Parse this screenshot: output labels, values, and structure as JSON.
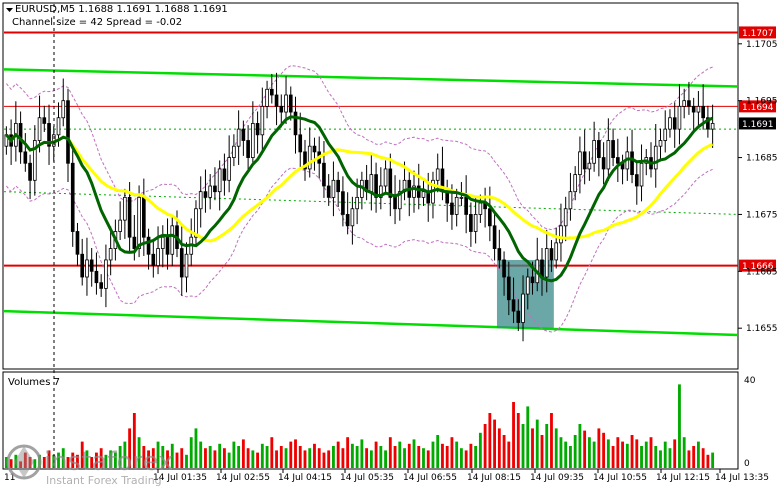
{
  "header": {
    "symbol_line": "EURUSD,M5  1.1688 1.1691 1.1688 1.1691",
    "channel_line": "Channel size = 42 Spread = -0.02"
  },
  "volume_label": "Volumes 7",
  "watermark": {
    "brand": "instaforex",
    "tagline": "Instant Forex Trading"
  },
  "colors": {
    "bull": "#000000",
    "bear": "#000000",
    "ma_slow": "#ffff00",
    "ma_fast": "#006400",
    "channel": "#00dd00",
    "level_line": "#e00000",
    "envelope": "#c070c0",
    "box": "#3a8a8a",
    "vol_up": "#00aa00",
    "vol_down": "#ee0000"
  },
  "chart_data": {
    "type": "candlestick",
    "symbol": "EURUSD",
    "timeframe": "M5",
    "ylim": [
      1.1648,
      1.1712
    ],
    "y_ticks": [
      1.1655,
      1.1665,
      1.1675,
      1.1685,
      1.1695,
      1.1705
    ],
    "y_tick_labels": [
      "1.1655",
      "1.1665",
      "1.1675",
      "1.1685",
      "1.1695",
      "1.1705"
    ],
    "x_labels": [
      "14 Jul 01:35",
      "14 Jul 02:55",
      "14 Jul 04:15",
      "14 Jul 05:35",
      "14 Jul 06:55",
      "14 Jul 08:15",
      "14 Jul 09:35",
      "14 Jul 10:55",
      "14 Jul 12:15",
      "14 Jul 13:35"
    ],
    "x_label_prefix": "11",
    "price_levels": [
      {
        "label": "1.1707",
        "value": 1.1707,
        "style": "red"
      },
      {
        "label": "1.1694",
        "value": 1.1694,
        "style": "red"
      },
      {
        "label": "1.1691",
        "value": 1.1691,
        "style": "current"
      },
      {
        "label": "1.1666",
        "value": 1.1666,
        "style": "red"
      }
    ],
    "close": [
      1.1689,
      1.1687,
      1.1691,
      1.1686,
      1.1684,
      1.1681,
      1.1688,
      1.1692,
      1.1691,
      1.1687,
      1.1689,
      1.1692,
      1.1695,
      1.1684,
      1.1672,
      1.1668,
      1.1664,
      1.1667,
      1.1665,
      1.1663,
      1.1662,
      1.1667,
      1.1669,
      1.1672,
      1.1674,
      1.1678,
      1.1671,
      1.1669,
      1.1678,
      1.1671,
      1.1668,
      1.1666,
      1.1669,
      1.1671,
      1.1668,
      1.1673,
      1.1669,
      1.1664,
      1.1668,
      1.1671,
      1.1676,
      1.1679,
      1.1678,
      1.168,
      1.1679,
      1.1683,
      1.1681,
      1.1685,
      1.1687,
      1.169,
      1.1688,
      1.1685,
      1.1691,
      1.1689,
      1.1694,
      1.1697,
      1.1696,
      1.1694,
      1.1693,
      1.1696,
      1.1693,
      1.1689,
      1.1686,
      1.1683,
      1.1687,
      1.1686,
      1.1684,
      1.168,
      1.1678,
      1.1681,
      1.1679,
      1.1675,
      1.1673,
      1.1676,
      1.1678,
      1.1681,
      1.1679,
      1.1682,
      1.1678,
      1.168,
      1.1683,
      1.1678,
      1.1676,
      1.1679,
      1.1681,
      1.1678,
      1.168,
      1.1678,
      1.1679,
      1.1677,
      1.1681,
      1.1683,
      1.1679,
      1.1677,
      1.1675,
      1.1678,
      1.1678,
      1.1675,
      1.1672,
      1.1675,
      1.1677,
      1.1676,
      1.1673,
      1.1669,
      1.1667,
      1.1664,
      1.166,
      1.1658,
      1.1656,
      1.1661,
      1.1664,
      1.1663,
      1.1667,
      1.1664,
      1.1669,
      1.1667,
      1.167,
      1.1673,
      1.1676,
      1.1679,
      1.1682,
      1.1686,
      1.1683,
      1.1684,
      1.1688,
      1.1685,
      1.1683,
      1.1688,
      1.1685,
      1.1684,
      1.1683,
      1.1686,
      1.1682,
      1.168,
      1.1684,
      1.1685,
      1.1683,
      1.1687,
      1.1688,
      1.169,
      1.1692,
      1.169,
      1.1694,
      1.1695,
      1.1694,
      1.1693,
      1.1694,
      1.1692,
      1.169,
      1.1691
    ],
    "volume_ylim": [
      0,
      40
    ],
    "volume_ticks": [
      "40",
      "0"
    ],
    "volumes": [
      5,
      4,
      6,
      3,
      7,
      5,
      4,
      6,
      5,
      8,
      6,
      7,
      9,
      5,
      7,
      6,
      12,
      8,
      5,
      7,
      9,
      6,
      8,
      7,
      10,
      12,
      18,
      25,
      14,
      10,
      8,
      9,
      12,
      10,
      8,
      11,
      7,
      9,
      6,
      14,
      18,
      12,
      9,
      10,
      8,
      11,
      9,
      7,
      12,
      10,
      13,
      9,
      8,
      7,
      11,
      10,
      14,
      8,
      10,
      9,
      12,
      13,
      10,
      8,
      9,
      11,
      9,
      7,
      8,
      10,
      12,
      9,
      14,
      11,
      10,
      13,
      9,
      8,
      12,
      10,
      8,
      14,
      10,
      12,
      9,
      11,
      13,
      10,
      9,
      8,
      12,
      15,
      11,
      10,
      14,
      12,
      9,
      8,
      11,
      10,
      16,
      20,
      25,
      22,
      18,
      15,
      12,
      30,
      25,
      20,
      28,
      18,
      22,
      15,
      20,
      25,
      18,
      14,
      12,
      10,
      15,
      20,
      17,
      14,
      12,
      18,
      16,
      13,
      10,
      14,
      12,
      11,
      15,
      13,
      10,
      12,
      14,
      10,
      8,
      12,
      9,
      13,
      38,
      14,
      8,
      10,
      12,
      9,
      6,
      7
    ]
  }
}
